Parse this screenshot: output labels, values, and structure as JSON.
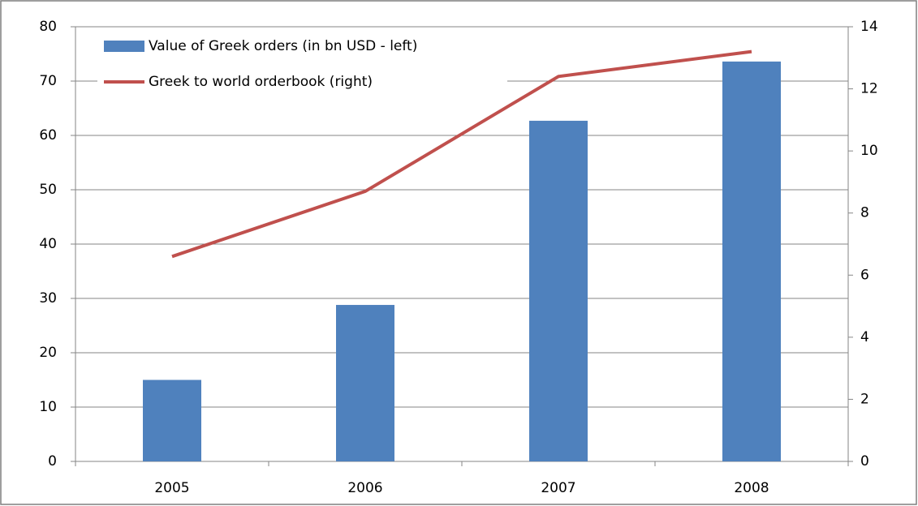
{
  "chart_data": {
    "type": "bar",
    "categories": [
      "2005",
      "2006",
      "2007",
      "2008"
    ],
    "series": [
      {
        "name": "Value of Greek orders (in bn USD - left)",
        "type": "bar",
        "color": "#4f81bd",
        "values": [
          15,
          28.8,
          62.7,
          73.6
        ]
      },
      {
        "name": "Greek to world orderbook (right)",
        "type": "line",
        "axis": "y2",
        "color": "#c0504d",
        "values": [
          6.6,
          8.7,
          12.4,
          13.2
        ]
      }
    ],
    "ylim": [
      0,
      80
    ],
    "yticks": [
      0,
      10,
      20,
      30,
      40,
      50,
      60,
      70,
      80
    ],
    "y2lim": [
      0,
      14
    ],
    "y2ticks": [
      0,
      2,
      4,
      6,
      8,
      10,
      12,
      14
    ],
    "grid": true,
    "legend": "top-left"
  }
}
